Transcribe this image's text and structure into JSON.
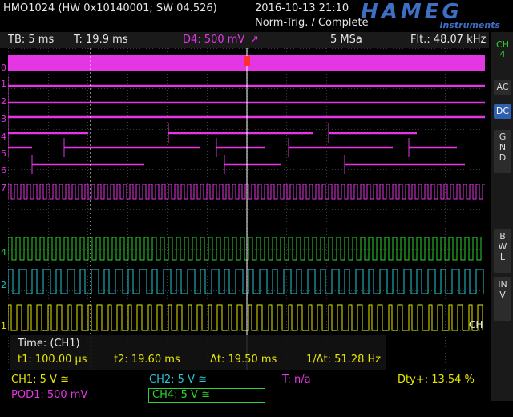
{
  "header": {
    "device": "HMO1024 (HW 0x10140001; SW 04.526)",
    "datetime": "2016-10-13 21:10",
    "trigger_status": "Norm-Trig. / Complete",
    "brand": "HAMEG",
    "brand_sub": "Instruments"
  },
  "status": {
    "timebase": "TB: 5 ms",
    "trigger_time": "T: 19.9 ms",
    "trigger_level": "D4: 500 mV",
    "trigger_edge": "↗",
    "sample_rate": "5 MSa",
    "frequency": "Flt.: 48.07 kHz"
  },
  "side_menu": {
    "channel": "CH 4",
    "coupling_ac": "AC",
    "coupling_dc": "DC",
    "gnd": "GND",
    "bwl": "BWL",
    "inv": "INV"
  },
  "markers": {
    "ch4": "4",
    "ch2": "2",
    "ch1": "1",
    "digital": [
      "0",
      "1",
      "2",
      "3",
      "4",
      "5",
      "6",
      "7"
    ],
    "cursor_label": "CH"
  },
  "measure": {
    "title": "Time: (CH1)",
    "t1": "t1: 100.00 µs",
    "t2": "t2: 19.60 ms",
    "dt": "Δt: 19.50 ms",
    "inv_dt": "1/Δt: 51.28 Hz"
  },
  "footer": {
    "ch1": "CH1: 5 V ≅",
    "pod1": "POD1: 500 mV",
    "ch2": "CH2: 5 V ≅",
    "ch4": "CH4: 5 V ≅",
    "trigger": "T: n/a",
    "duty": "Dty+: 13.54 %"
  },
  "colors": {
    "ch1": "#e8e800",
    "ch2": "#26c6d6",
    "ch4": "#2ed12e",
    "digital": "#e436e4",
    "accent": "#3d6fc4"
  }
}
